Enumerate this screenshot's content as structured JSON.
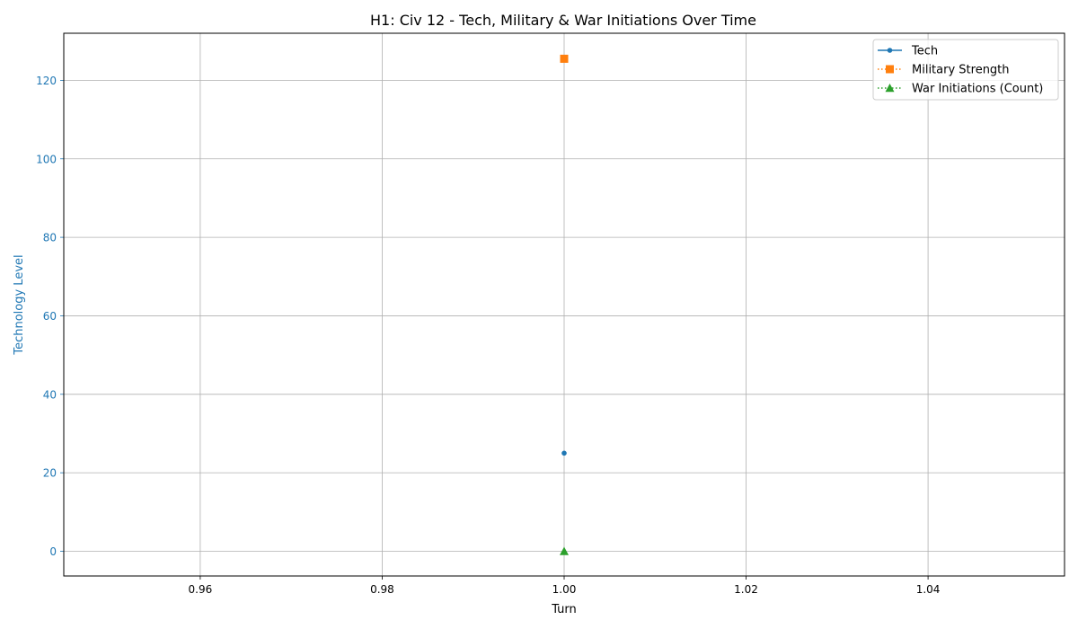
{
  "chart_data": {
    "type": "line",
    "title": "H1: Civ 12 - Tech, Military & War Initiations Over Time",
    "xlabel": "Turn",
    "ylabel": "Technology Level",
    "xlim": [
      0.945,
      1.055
    ],
    "ylim": [
      -6.3,
      132
    ],
    "xticks": [
      0.96,
      0.98,
      1.0,
      1.02,
      1.04
    ],
    "xtick_labels": [
      "0.96",
      "0.98",
      "1.00",
      "1.02",
      "1.04"
    ],
    "yticks": [
      0,
      20,
      40,
      60,
      80,
      100,
      120
    ],
    "ytick_labels": [
      "0",
      "20",
      "40",
      "60",
      "80",
      "100",
      "120"
    ],
    "grid": true,
    "legend_position": "top-right",
    "series": [
      {
        "name": "Tech",
        "x": [
          1.0
        ],
        "y": [
          25
        ],
        "color": "#1f77b4",
        "marker": "dot",
        "linestyle": "solid"
      },
      {
        "name": "Military Strength",
        "x": [
          1.0
        ],
        "y": [
          125.5
        ],
        "color": "#ff7f0e",
        "marker": "square",
        "linestyle": "dotted"
      },
      {
        "name": "War Initiations (Count)",
        "x": [
          1.0
        ],
        "y": [
          0
        ],
        "color": "#2ca02c",
        "marker": "triangle",
        "linestyle": "dotted"
      }
    ]
  }
}
